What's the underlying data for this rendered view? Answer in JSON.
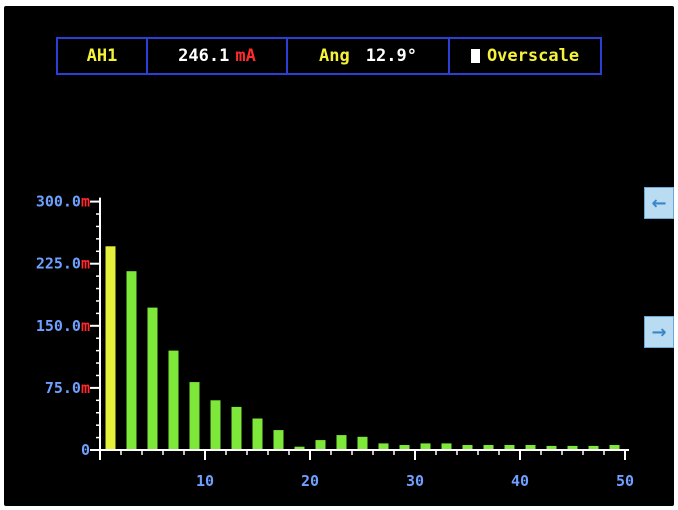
{
  "status": {
    "channel": "AH1",
    "reading": "246.1",
    "reading_unit": "mA",
    "angle_label": "Ang",
    "angle_value": "12.9°",
    "overscale_label": "Overscale"
  },
  "nav": {
    "left_arrow": "←",
    "right_arrow": "→"
  },
  "colors": {
    "background": "#000000",
    "border": "#2a3fd6",
    "fundamental_bar": "#e4f03a",
    "harmonic_bar": "#7ee83a",
    "axis": "#ffffff",
    "tick_label": "#6fa0ff",
    "unit_suffix": "#ff2a2a",
    "accent_yellow": "#f6f23a",
    "button": "#b9dcf2"
  },
  "chart_data": {
    "type": "bar",
    "title": "",
    "xlabel": "",
    "ylabel": "",
    "ylim": [
      0,
      300
    ],
    "xlim": [
      0,
      50
    ],
    "y_ticks": [
      {
        "num": "0",
        "unit": ""
      },
      {
        "num": "75.0",
        "unit": "m"
      },
      {
        "num": "150.0",
        "unit": "m"
      },
      {
        "num": "225.0",
        "unit": "m"
      },
      {
        "num": "300.0",
        "unit": "m"
      }
    ],
    "x_ticks": [
      "10",
      "20",
      "30",
      "40",
      "50"
    ],
    "harmonics": [
      1,
      3,
      5,
      7,
      9,
      11,
      13,
      15,
      17,
      19,
      21,
      23,
      25,
      27,
      29,
      31,
      33,
      35,
      37,
      39,
      41,
      43,
      45,
      47,
      49
    ],
    "values": [
      246,
      216,
      172,
      120,
      82,
      60,
      52,
      38,
      24,
      4,
      12,
      18,
      16,
      8,
      6,
      8,
      8,
      6,
      6,
      6,
      6,
      5,
      5,
      5,
      6
    ],
    "grid": false,
    "legend": "none"
  }
}
